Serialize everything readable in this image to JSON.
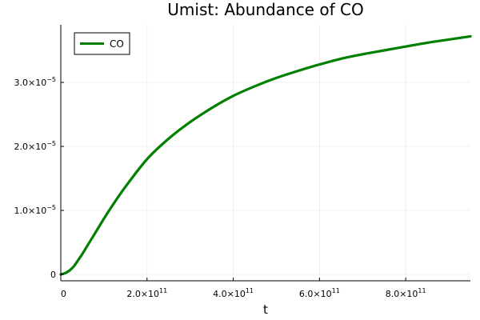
{
  "chart_data": {
    "type": "line",
    "title": "Umist: Abundance of CO",
    "xlabel": "t",
    "ylabel": "",
    "xlim": [
      0,
      950000000000
    ],
    "ylim": [
      -1e-06,
      3.9e-05
    ],
    "grid": true,
    "legend_placement": "top-left",
    "x_ticks": [
      {
        "value": 0,
        "label": "0"
      },
      {
        "value": 200000000000,
        "mantissa": "2.0×10",
        "exp": "11"
      },
      {
        "value": 400000000000,
        "mantissa": "4.0×10",
        "exp": "11"
      },
      {
        "value": 600000000000,
        "mantissa": "6.0×10",
        "exp": "11"
      },
      {
        "value": 800000000000,
        "mantissa": "8.0×10",
        "exp": "11"
      }
    ],
    "y_ticks": [
      {
        "value": 0,
        "label": "0"
      },
      {
        "value": 1e-05,
        "mantissa": "1.0×10",
        "exp": "−5"
      },
      {
        "value": 2e-05,
        "mantissa": "2.0×10",
        "exp": "−5"
      },
      {
        "value": 3e-05,
        "mantissa": "3.0×10",
        "exp": "−5"
      }
    ],
    "series": [
      {
        "name": "CO",
        "color": "#008000",
        "x": [
          0,
          10000000000,
          20000000000,
          30000000000,
          40000000000,
          50000000000,
          60000000000,
          80000000000,
          100000000000,
          120000000000,
          150000000000,
          200000000000,
          250000000000,
          300000000000,
          350000000000,
          400000000000,
          450000000000,
          500000000000,
          550000000000,
          600000000000,
          650000000000,
          700000000000,
          750000000000,
          800000000000,
          850000000000,
          900000000000,
          950000000000
        ],
        "y": [
          0,
          2e-07,
          6e-07,
          1.25e-06,
          2.2e-06,
          3.2e-06,
          4.3e-06,
          6.5e-06,
          8.7e-06,
          1.08e-05,
          1.37e-05,
          1.8e-05,
          2.12e-05,
          2.38e-05,
          2.6e-05,
          2.79e-05,
          2.94e-05,
          3.07e-05,
          3.18e-05,
          3.28e-05,
          3.37e-05,
          3.44e-05,
          3.5e-05,
          3.56e-05,
          3.62e-05,
          3.67e-05,
          3.72e-05
        ]
      }
    ]
  }
}
